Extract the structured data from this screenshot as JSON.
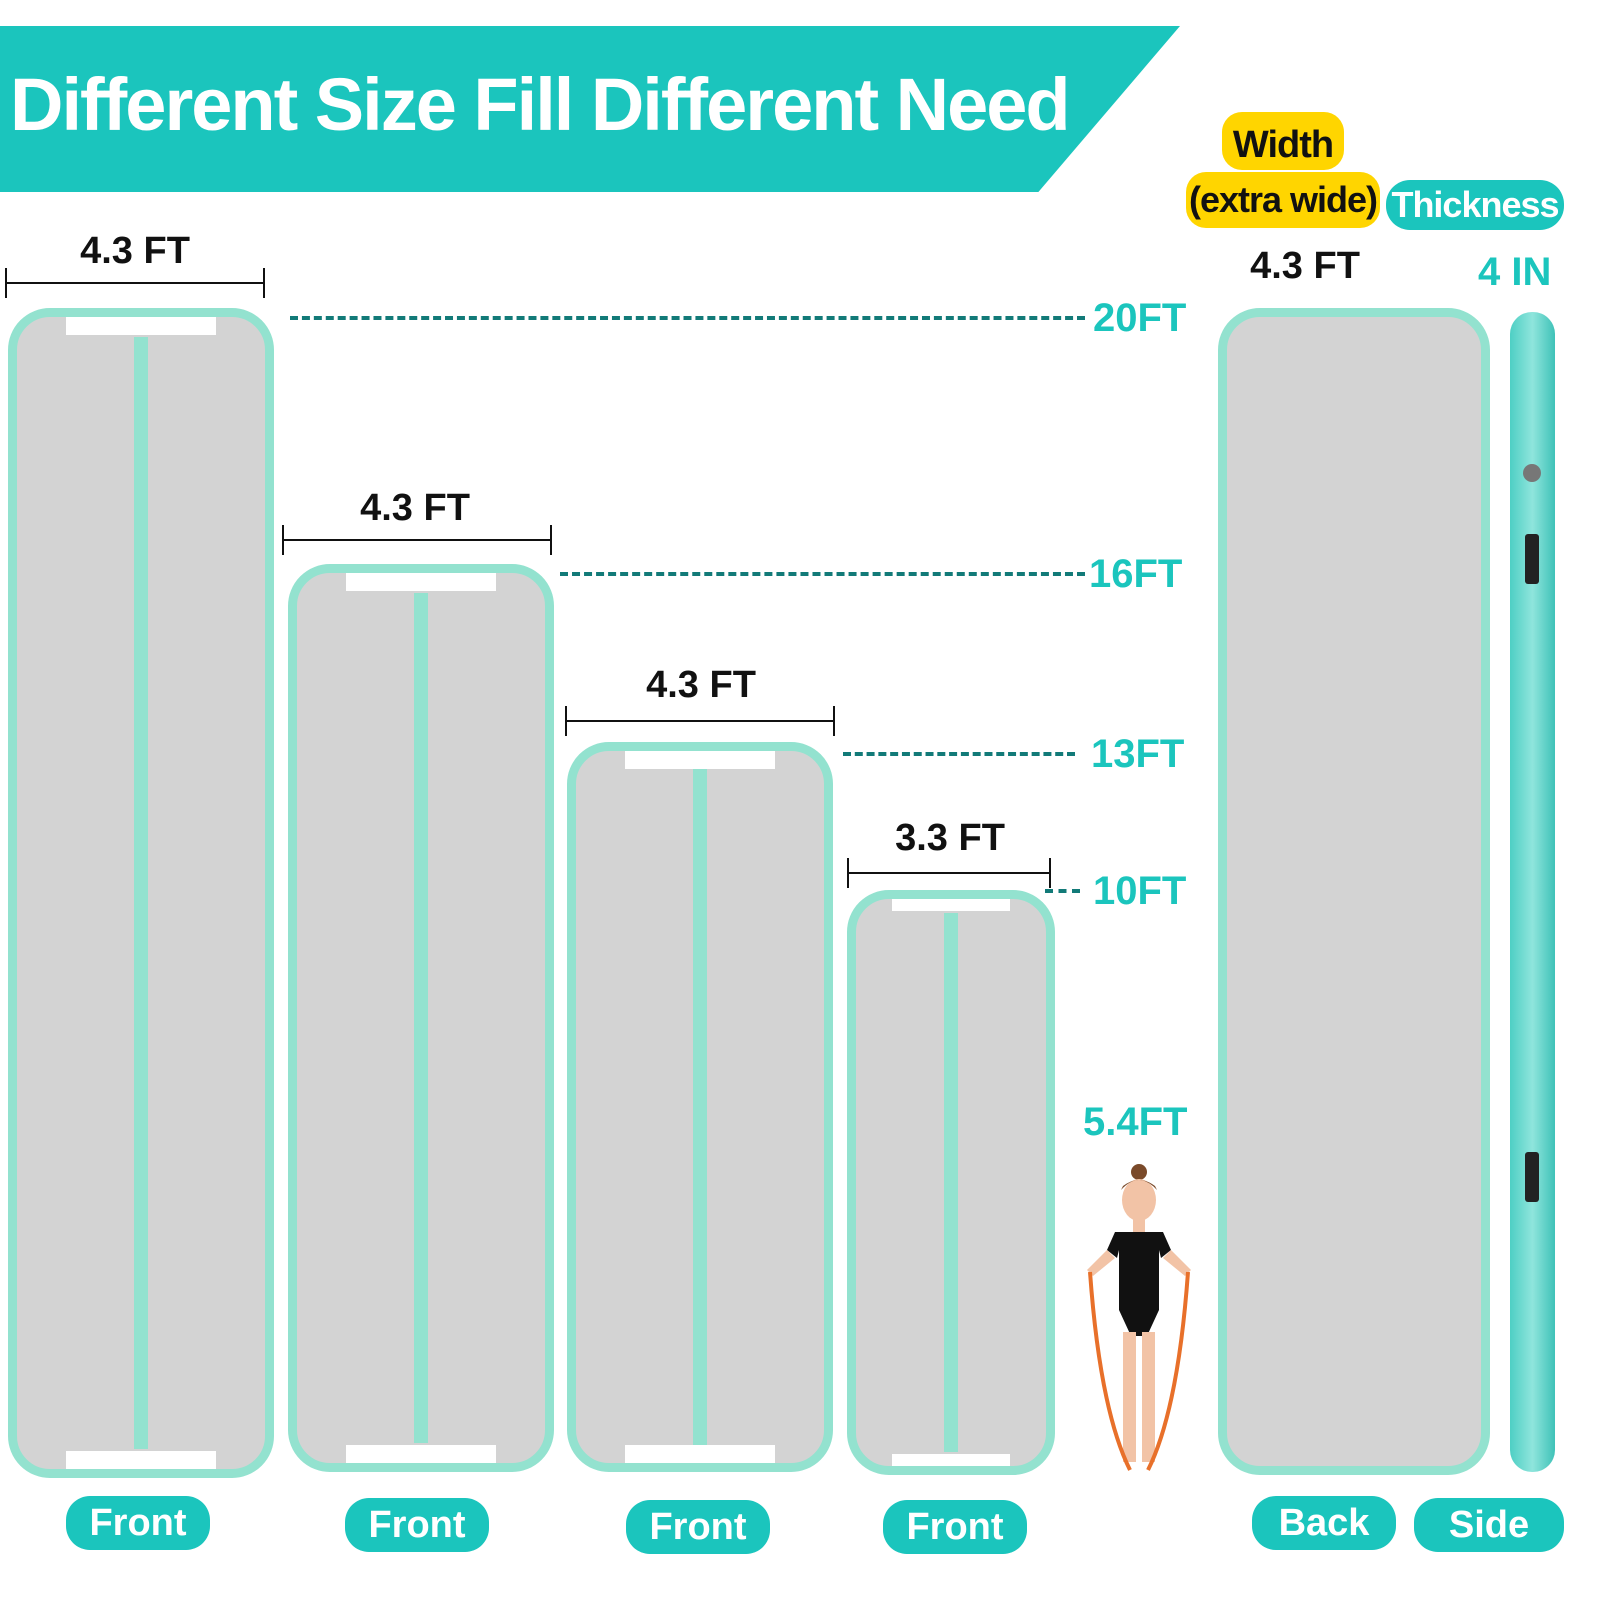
{
  "title": "Different Size Fill Different Need",
  "width_label": "Width",
  "width_sub": "(extra wide)",
  "thickness_label": "Thickness",
  "back_width": "4.3 FT",
  "thickness_value": "4 IN",
  "mats": [
    {
      "width": "4.3 FT",
      "length": "20FT",
      "view": "Front"
    },
    {
      "width": "4.3 FT",
      "length": "16FT",
      "view": "Front"
    },
    {
      "width": "4.3 FT",
      "length": "13FT",
      "view": "Front"
    },
    {
      "width": "3.3 FT",
      "length": "10FT",
      "view": "Front"
    }
  ],
  "person_height": "5.4FT",
  "back_label": "Back",
  "side_label": "Side",
  "colors": {
    "teal": "#1bc5bd",
    "mint": "#93e2cf",
    "mat_gray": "#d3d3d3",
    "yellow": "#ffd500"
  }
}
